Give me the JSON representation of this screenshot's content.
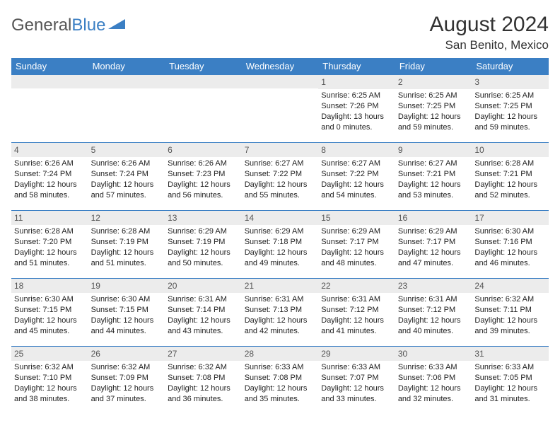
{
  "logo": {
    "text1": "General",
    "text2": "Blue"
  },
  "title": "August 2024",
  "location": "San Benito, Mexico",
  "colors": {
    "header_bg": "#3b7fc4",
    "header_text": "#ffffff",
    "daynum_bg": "#ececec",
    "border": "#3b7fc4",
    "text": "#222222"
  },
  "day_names": [
    "Sunday",
    "Monday",
    "Tuesday",
    "Wednesday",
    "Thursday",
    "Friday",
    "Saturday"
  ],
  "weeks": [
    [
      {
        "n": "",
        "sr": "",
        "ss": "",
        "dl": ""
      },
      {
        "n": "",
        "sr": "",
        "ss": "",
        "dl": ""
      },
      {
        "n": "",
        "sr": "",
        "ss": "",
        "dl": ""
      },
      {
        "n": "",
        "sr": "",
        "ss": "",
        "dl": ""
      },
      {
        "n": "1",
        "sr": "Sunrise: 6:25 AM",
        "ss": "Sunset: 7:26 PM",
        "dl": "Daylight: 13 hours and 0 minutes."
      },
      {
        "n": "2",
        "sr": "Sunrise: 6:25 AM",
        "ss": "Sunset: 7:25 PM",
        "dl": "Daylight: 12 hours and 59 minutes."
      },
      {
        "n": "3",
        "sr": "Sunrise: 6:25 AM",
        "ss": "Sunset: 7:25 PM",
        "dl": "Daylight: 12 hours and 59 minutes."
      }
    ],
    [
      {
        "n": "4",
        "sr": "Sunrise: 6:26 AM",
        "ss": "Sunset: 7:24 PM",
        "dl": "Daylight: 12 hours and 58 minutes."
      },
      {
        "n": "5",
        "sr": "Sunrise: 6:26 AM",
        "ss": "Sunset: 7:24 PM",
        "dl": "Daylight: 12 hours and 57 minutes."
      },
      {
        "n": "6",
        "sr": "Sunrise: 6:26 AM",
        "ss": "Sunset: 7:23 PM",
        "dl": "Daylight: 12 hours and 56 minutes."
      },
      {
        "n": "7",
        "sr": "Sunrise: 6:27 AM",
        "ss": "Sunset: 7:22 PM",
        "dl": "Daylight: 12 hours and 55 minutes."
      },
      {
        "n": "8",
        "sr": "Sunrise: 6:27 AM",
        "ss": "Sunset: 7:22 PM",
        "dl": "Daylight: 12 hours and 54 minutes."
      },
      {
        "n": "9",
        "sr": "Sunrise: 6:27 AM",
        "ss": "Sunset: 7:21 PM",
        "dl": "Daylight: 12 hours and 53 minutes."
      },
      {
        "n": "10",
        "sr": "Sunrise: 6:28 AM",
        "ss": "Sunset: 7:21 PM",
        "dl": "Daylight: 12 hours and 52 minutes."
      }
    ],
    [
      {
        "n": "11",
        "sr": "Sunrise: 6:28 AM",
        "ss": "Sunset: 7:20 PM",
        "dl": "Daylight: 12 hours and 51 minutes."
      },
      {
        "n": "12",
        "sr": "Sunrise: 6:28 AM",
        "ss": "Sunset: 7:19 PM",
        "dl": "Daylight: 12 hours and 51 minutes."
      },
      {
        "n": "13",
        "sr": "Sunrise: 6:29 AM",
        "ss": "Sunset: 7:19 PM",
        "dl": "Daylight: 12 hours and 50 minutes."
      },
      {
        "n": "14",
        "sr": "Sunrise: 6:29 AM",
        "ss": "Sunset: 7:18 PM",
        "dl": "Daylight: 12 hours and 49 minutes."
      },
      {
        "n": "15",
        "sr": "Sunrise: 6:29 AM",
        "ss": "Sunset: 7:17 PM",
        "dl": "Daylight: 12 hours and 48 minutes."
      },
      {
        "n": "16",
        "sr": "Sunrise: 6:29 AM",
        "ss": "Sunset: 7:17 PM",
        "dl": "Daylight: 12 hours and 47 minutes."
      },
      {
        "n": "17",
        "sr": "Sunrise: 6:30 AM",
        "ss": "Sunset: 7:16 PM",
        "dl": "Daylight: 12 hours and 46 minutes."
      }
    ],
    [
      {
        "n": "18",
        "sr": "Sunrise: 6:30 AM",
        "ss": "Sunset: 7:15 PM",
        "dl": "Daylight: 12 hours and 45 minutes."
      },
      {
        "n": "19",
        "sr": "Sunrise: 6:30 AM",
        "ss": "Sunset: 7:15 PM",
        "dl": "Daylight: 12 hours and 44 minutes."
      },
      {
        "n": "20",
        "sr": "Sunrise: 6:31 AM",
        "ss": "Sunset: 7:14 PM",
        "dl": "Daylight: 12 hours and 43 minutes."
      },
      {
        "n": "21",
        "sr": "Sunrise: 6:31 AM",
        "ss": "Sunset: 7:13 PM",
        "dl": "Daylight: 12 hours and 42 minutes."
      },
      {
        "n": "22",
        "sr": "Sunrise: 6:31 AM",
        "ss": "Sunset: 7:12 PM",
        "dl": "Daylight: 12 hours and 41 minutes."
      },
      {
        "n": "23",
        "sr": "Sunrise: 6:31 AM",
        "ss": "Sunset: 7:12 PM",
        "dl": "Daylight: 12 hours and 40 minutes."
      },
      {
        "n": "24",
        "sr": "Sunrise: 6:32 AM",
        "ss": "Sunset: 7:11 PM",
        "dl": "Daylight: 12 hours and 39 minutes."
      }
    ],
    [
      {
        "n": "25",
        "sr": "Sunrise: 6:32 AM",
        "ss": "Sunset: 7:10 PM",
        "dl": "Daylight: 12 hours and 38 minutes."
      },
      {
        "n": "26",
        "sr": "Sunrise: 6:32 AM",
        "ss": "Sunset: 7:09 PM",
        "dl": "Daylight: 12 hours and 37 minutes."
      },
      {
        "n": "27",
        "sr": "Sunrise: 6:32 AM",
        "ss": "Sunset: 7:08 PM",
        "dl": "Daylight: 12 hours and 36 minutes."
      },
      {
        "n": "28",
        "sr": "Sunrise: 6:33 AM",
        "ss": "Sunset: 7:08 PM",
        "dl": "Daylight: 12 hours and 35 minutes."
      },
      {
        "n": "29",
        "sr": "Sunrise: 6:33 AM",
        "ss": "Sunset: 7:07 PM",
        "dl": "Daylight: 12 hours and 33 minutes."
      },
      {
        "n": "30",
        "sr": "Sunrise: 6:33 AM",
        "ss": "Sunset: 7:06 PM",
        "dl": "Daylight: 12 hours and 32 minutes."
      },
      {
        "n": "31",
        "sr": "Sunrise: 6:33 AM",
        "ss": "Sunset: 7:05 PM",
        "dl": "Daylight: 12 hours and 31 minutes."
      }
    ]
  ]
}
